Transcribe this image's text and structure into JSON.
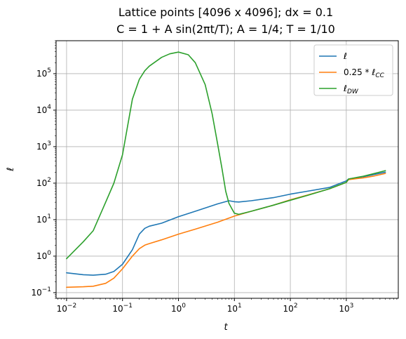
{
  "chart_data": {
    "type": "line",
    "title_line1": "Lattice points [4096 x 4096]; dx = 0.1",
    "title_line2": "C = 1 + A sin(2πt/T); A = 1/4; T = 1/10",
    "xlabel": "t",
    "ylabel": "ℓ",
    "xscale": "log",
    "yscale": "log",
    "xlim": [
      0.0065,
      8500
    ],
    "ylim": [
      0.07,
      800000
    ],
    "grid": true,
    "legend_position": "top-right",
    "x_ticks": [
      {
        "value": 0.01,
        "base": "10",
        "exp": "−2"
      },
      {
        "value": 0.1,
        "base": "10",
        "exp": "−1"
      },
      {
        "value": 1,
        "base": "10",
        "exp": "0"
      },
      {
        "value": 10,
        "base": "10",
        "exp": "1"
      },
      {
        "value": 100,
        "base": "10",
        "exp": "2"
      },
      {
        "value": 1000,
        "base": "10",
        "exp": "3"
      }
    ],
    "y_ticks": [
      {
        "value": 0.1,
        "base": "10",
        "exp": "−1"
      },
      {
        "value": 1,
        "base": "10",
        "exp": "0"
      },
      {
        "value": 10,
        "base": "10",
        "exp": "1"
      },
      {
        "value": 100,
        "base": "10",
        "exp": "2"
      },
      {
        "value": 1000,
        "base": "10",
        "exp": "3"
      },
      {
        "value": 10000,
        "base": "10",
        "exp": "4"
      },
      {
        "value": 100000,
        "base": "10",
        "exp": "5"
      }
    ],
    "series": [
      {
        "name": "ℓ",
        "label_main": "ℓ",
        "label_sub": "",
        "color": "#1f77b4",
        "points": [
          [
            0.01,
            0.35
          ],
          [
            0.02,
            0.31
          ],
          [
            0.03,
            0.3
          ],
          [
            0.05,
            0.32
          ],
          [
            0.07,
            0.38
          ],
          [
            0.1,
            0.6
          ],
          [
            0.15,
            1.5
          ],
          [
            0.2,
            4.0
          ],
          [
            0.25,
            5.8
          ],
          [
            0.3,
            6.6
          ],
          [
            0.5,
            8.0
          ],
          [
            1.0,
            12.0
          ],
          [
            2.0,
            17.0
          ],
          [
            5.0,
            27.0
          ],
          [
            8.0,
            33.0
          ],
          [
            10.0,
            31.0
          ],
          [
            12.0,
            30.5
          ],
          [
            20.0,
            33.0
          ],
          [
            50.0,
            40.0
          ],
          [
            100.0,
            50.0
          ],
          [
            200.0,
            60.0
          ],
          [
            500.0,
            76.0
          ],
          [
            1000.0,
            115.0
          ],
          [
            1100.0,
            130.0
          ],
          [
            2000.0,
            150.0
          ],
          [
            3000.0,
            170.0
          ],
          [
            5000.0,
            200.0
          ]
        ]
      },
      {
        "name": "0.25 * ℓCC",
        "label_main": "0.25 * ℓ",
        "label_sub": "CC",
        "color": "#ff7f0e",
        "points": [
          [
            0.01,
            0.14
          ],
          [
            0.02,
            0.145
          ],
          [
            0.03,
            0.15
          ],
          [
            0.05,
            0.18
          ],
          [
            0.07,
            0.25
          ],
          [
            0.1,
            0.45
          ],
          [
            0.15,
            1.0
          ],
          [
            0.2,
            1.6
          ],
          [
            0.25,
            2.0
          ],
          [
            0.3,
            2.2
          ],
          [
            0.5,
            2.8
          ],
          [
            1.0,
            4.0
          ],
          [
            2.0,
            5.5
          ],
          [
            5.0,
            8.5
          ],
          [
            10.0,
            12.5
          ],
          [
            20.0,
            17.0
          ],
          [
            50.0,
            25.0
          ],
          [
            100.0,
            35.0
          ],
          [
            200.0,
            47.0
          ],
          [
            500.0,
            70.0
          ],
          [
            1000.0,
            105.0
          ],
          [
            1100.0,
            125.0
          ],
          [
            2000.0,
            140.0
          ],
          [
            3000.0,
            155.0
          ],
          [
            5000.0,
            185.0
          ]
        ]
      },
      {
        "name": "ℓDW",
        "label_main": "ℓ",
        "label_sub": "DW",
        "color": "#2ca02c",
        "points": [
          [
            0.01,
            0.85
          ],
          [
            0.02,
            2.5
          ],
          [
            0.03,
            5.0
          ],
          [
            0.05,
            30.0
          ],
          [
            0.07,
            100.0
          ],
          [
            0.1,
            600.0
          ],
          [
            0.15,
            20000.0
          ],
          [
            0.2,
            70000.0
          ],
          [
            0.25,
            120000.0
          ],
          [
            0.3,
            160000.0
          ],
          [
            0.5,
            280000.0
          ],
          [
            0.7,
            350000.0
          ],
          [
            1.0,
            390000.0
          ],
          [
            1.5,
            330000.0
          ],
          [
            2.0,
            200000.0
          ],
          [
            3.0,
            50000.0
          ],
          [
            4.0,
            8000.0
          ],
          [
            5.0,
            1200.0
          ],
          [
            6.0,
            250.0
          ],
          [
            7.0,
            60.0
          ],
          [
            8.0,
            28.0
          ],
          [
            9.0,
            20.0
          ],
          [
            10.0,
            15.0
          ],
          [
            12.0,
            14.0
          ],
          [
            20.0,
            17.0
          ],
          [
            50.0,
            25.0
          ],
          [
            100.0,
            34.0
          ],
          [
            200.0,
            46.0
          ],
          [
            500.0,
            70.0
          ],
          [
            1000.0,
            105.0
          ],
          [
            1100.0,
            130.0
          ],
          [
            2000.0,
            155.0
          ],
          [
            3000.0,
            180.0
          ],
          [
            5000.0,
            220.0
          ]
        ]
      }
    ]
  }
}
